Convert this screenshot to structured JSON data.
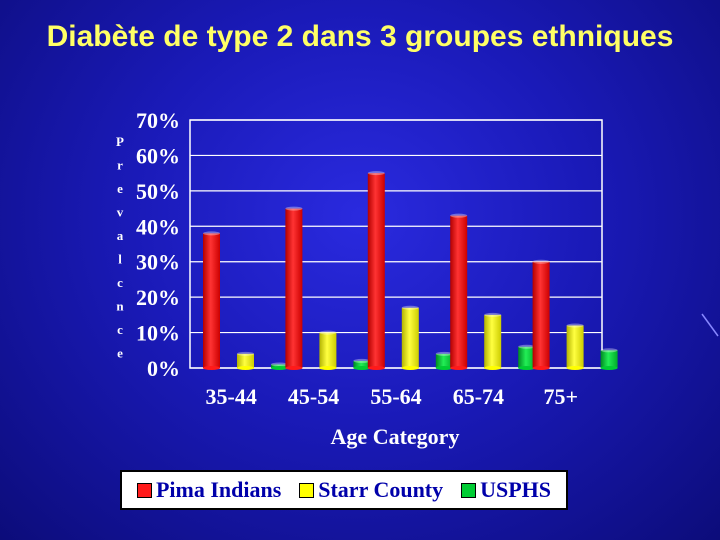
{
  "title": "Diabète de type 2 dans 3 groupes ethniques",
  "chart_data": {
    "type": "bar",
    "title": "Diabète de type 2 dans 3 groupes ethniques",
    "xlabel": "Age Category",
    "ylabel": "Prevalence",
    "ylabel_printed": "P r e v a l c n c e",
    "categories": [
      "35-44",
      "45-54",
      "55-64",
      "65-74",
      "75+"
    ],
    "yticks": [
      "0%",
      "10%",
      "20%",
      "30%",
      "40%",
      "50%",
      "60%",
      "70%"
    ],
    "ylim": [
      0,
      70
    ],
    "grid": true,
    "legend_position": "bottom",
    "series": [
      {
        "name": "Pima Indians",
        "color": "#ff1a1a",
        "values": [
          38,
          45,
          55,
          43,
          30
        ]
      },
      {
        "name": "Starr County",
        "color": "#ffff00",
        "values": [
          4,
          10,
          17,
          15,
          12
        ]
      },
      {
        "name": "USPHS",
        "color": "#00cc33",
        "values": [
          1,
          2,
          4,
          6,
          5
        ]
      }
    ]
  }
}
